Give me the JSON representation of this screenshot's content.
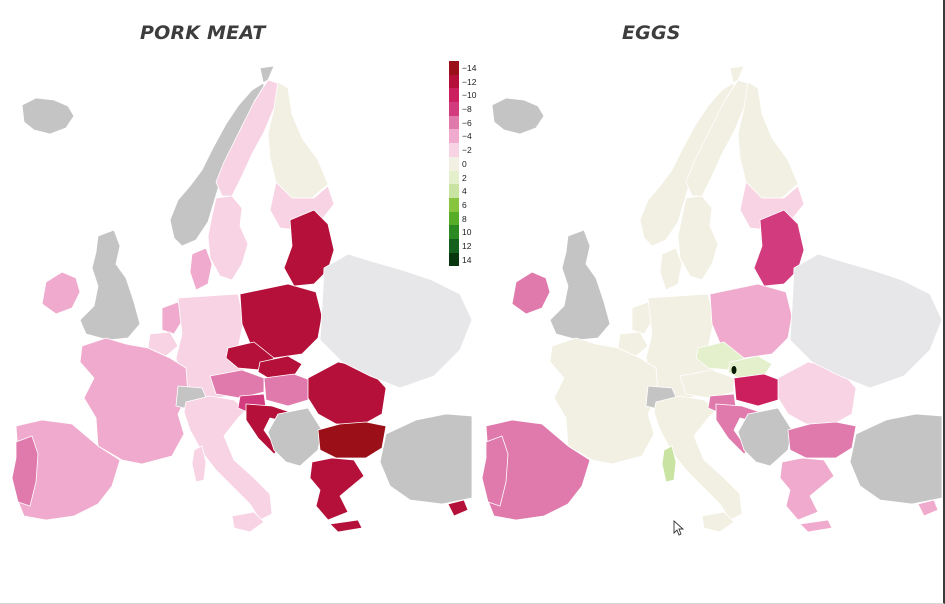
{
  "maps": [
    {
      "title": "PORK MEAT",
      "regions": [
        {
          "region": "iceland",
          "value": null
        },
        {
          "region": "norway",
          "value": null
        },
        {
          "region": "sweden-north",
          "value": -2
        },
        {
          "region": "sweden-south",
          "value": -2
        },
        {
          "region": "finland-north",
          "value": 0
        },
        {
          "region": "finland-south",
          "value": -2
        },
        {
          "region": "ireland",
          "value": -4
        },
        {
          "region": "united-kingdom",
          "value": null
        },
        {
          "region": "denmark",
          "value": -4
        },
        {
          "region": "netherlands",
          "value": -4
        },
        {
          "region": "belgium",
          "value": -2
        },
        {
          "region": "germany",
          "value": -2
        },
        {
          "region": "france",
          "value": -4
        },
        {
          "region": "spain",
          "value": -4
        },
        {
          "region": "portugal",
          "value": -6
        },
        {
          "region": "switzerland",
          "value": null
        },
        {
          "region": "italy",
          "value": -2
        },
        {
          "region": "sardinia",
          "value": -2
        },
        {
          "region": "sicily",
          "value": -2
        },
        {
          "region": "poland",
          "value": -12
        },
        {
          "region": "czechia",
          "value": -12
        },
        {
          "region": "slovakia",
          "value": -12
        },
        {
          "region": "austria",
          "value": -6
        },
        {
          "region": "hungary",
          "value": -6
        },
        {
          "region": "slovenia",
          "value": -8
        },
        {
          "region": "croatia",
          "value": -12
        },
        {
          "region": "balkans-west",
          "value": null
        },
        {
          "region": "romania",
          "value": -12
        },
        {
          "region": "bulgaria",
          "value": -14
        },
        {
          "region": "greece",
          "value": -12
        },
        {
          "region": "baltics",
          "value": -12
        },
        {
          "region": "belarus-ukraine",
          "value": null
        },
        {
          "region": "turkey",
          "value": null
        },
        {
          "region": "cyprus",
          "value": -12
        },
        {
          "region": "crete",
          "value": -12
        }
      ]
    },
    {
      "title": "EGGS",
      "regions": [
        {
          "region": "iceland",
          "value": null
        },
        {
          "region": "norway",
          "value": 0
        },
        {
          "region": "sweden-north",
          "value": 0
        },
        {
          "region": "sweden-south",
          "value": 0
        },
        {
          "region": "finland-north",
          "value": 0
        },
        {
          "region": "finland-south",
          "value": -2
        },
        {
          "region": "ireland",
          "value": -6
        },
        {
          "region": "united-kingdom",
          "value": null
        },
        {
          "region": "denmark",
          "value": 0
        },
        {
          "region": "netherlands",
          "value": 0
        },
        {
          "region": "belgium",
          "value": 0
        },
        {
          "region": "germany",
          "value": 0
        },
        {
          "region": "france",
          "value": 0
        },
        {
          "region": "spain",
          "value": -6
        },
        {
          "region": "portugal",
          "value": -6
        },
        {
          "region": "switzerland",
          "value": null
        },
        {
          "region": "italy",
          "value": 0
        },
        {
          "region": "sardinia",
          "value": 4
        },
        {
          "region": "sicily",
          "value": 0
        },
        {
          "region": "poland",
          "value": -4
        },
        {
          "region": "czechia",
          "value": 2
        },
        {
          "region": "slovakia",
          "value": 2
        },
        {
          "region": "austria",
          "value": 0
        },
        {
          "region": "hungary",
          "value": -10
        },
        {
          "region": "slovenia",
          "value": -6
        },
        {
          "region": "croatia",
          "value": -6
        },
        {
          "region": "balkans-west",
          "value": null
        },
        {
          "region": "romania",
          "value": -2
        },
        {
          "region": "bulgaria",
          "value": -6
        },
        {
          "region": "greece",
          "value": -4
        },
        {
          "region": "baltics",
          "value": -8
        },
        {
          "region": "belarus-ukraine",
          "value": null
        },
        {
          "region": "turkey",
          "value": null
        },
        {
          "region": "cyprus",
          "value": -4
        },
        {
          "region": "crete",
          "value": -4
        }
      ]
    }
  ],
  "legend": [
    {
      "label": "−14",
      "color": "#9b0f19"
    },
    {
      "label": "−12",
      "color": "#b5103a"
    },
    {
      "label": "−10",
      "color": "#cc1f5e"
    },
    {
      "label": "−8",
      "color": "#d23c7e"
    },
    {
      "label": "−6",
      "color": "#e07aad"
    },
    {
      "label": "−4",
      "color": "#f0aacd"
    },
    {
      "label": "−2",
      "color": "#f8d3e3"
    },
    {
      "label": "0",
      "color": "#f2f0e2"
    },
    {
      "label": "2",
      "color": "#e4efcc"
    },
    {
      "label": "4",
      "color": "#c8e3a2"
    },
    {
      "label": "6",
      "color": "#86c53d"
    },
    {
      "label": "8",
      "color": "#58ad28"
    },
    {
      "label": "10",
      "color": "#2c8a23"
    },
    {
      "label": "12",
      "color": "#15601c"
    },
    {
      "label": "14",
      "color": "#07360f"
    }
  ],
  "colors": {
    "no_data": "#c4c4c4",
    "no_data_east": "#e7e7e9",
    "special_black": "#061a06"
  },
  "icons": {
    "cursor": "mouse-pointer-icon"
  }
}
